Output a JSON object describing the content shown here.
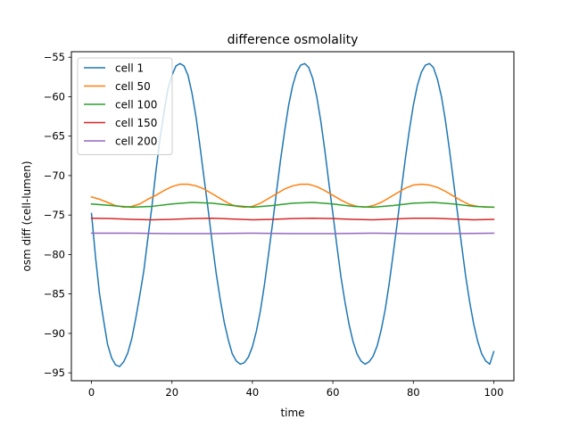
{
  "chart_data": {
    "type": "line",
    "title": "difference osmolality",
    "xlabel": "time",
    "ylabel": "osm diff (cell-lumen)",
    "xlim": [
      -5,
      105
    ],
    "ylim": [
      -96.0,
      -54.3
    ],
    "xticks": [
      0,
      20,
      40,
      60,
      80,
      100
    ],
    "yticks": [
      -55,
      -60,
      -65,
      -70,
      -75,
      -80,
      -85,
      -90,
      -95
    ],
    "ytick_labels": [
      "−55",
      "−60",
      "−65",
      "−70",
      "−75",
      "−80",
      "−85",
      "−90",
      "−95"
    ],
    "grid": false,
    "legend_position": "top-left",
    "series": [
      {
        "name": "cell 1",
        "color": "#1f77b4",
        "x": [
          0,
          1,
          2,
          3,
          4,
          5,
          6,
          7,
          8,
          9,
          10,
          11,
          12,
          13,
          14,
          15,
          16,
          17,
          18,
          19,
          20,
          21,
          22,
          23,
          24,
          25,
          26,
          27,
          28,
          29,
          30,
          31,
          32,
          33,
          34,
          35,
          36,
          37,
          38,
          39,
          40,
          41,
          42,
          43,
          44,
          45,
          46,
          47,
          48,
          49,
          50,
          51,
          52,
          53,
          54,
          55,
          56,
          57,
          58,
          59,
          60,
          61,
          62,
          63,
          64,
          65,
          66,
          67,
          68,
          69,
          70,
          71,
          72,
          73,
          74,
          75,
          76,
          77,
          78,
          79,
          80,
          81,
          82,
          83,
          84,
          85,
          86,
          87,
          88,
          89,
          90,
          91,
          92,
          93,
          94,
          95,
          96,
          97,
          98,
          99,
          100
        ],
        "y": [
          -74.8,
          -80.3,
          -85.0,
          -88.3,
          -91.4,
          -93.1,
          -94.0,
          -94.2,
          -93.6,
          -92.5,
          -90.7,
          -88.1,
          -85.2,
          -82.1,
          -78.0,
          -74.0,
          -69.5,
          -65.4,
          -62.1,
          -59.0,
          -57.3,
          -56.1,
          -55.8,
          -56.1,
          -57.3,
          -59.6,
          -62.6,
          -66.4,
          -70.4,
          -74.3,
          -78.5,
          -82.4,
          -85.7,
          -88.6,
          -90.8,
          -92.6,
          -93.5,
          -93.9,
          -93.7,
          -93.0,
          -91.7,
          -89.7,
          -87.1,
          -83.8,
          -80.0,
          -76.1,
          -72.0,
          -68.0,
          -64.4,
          -61.1,
          -58.6,
          -56.9,
          -56.0,
          -55.8,
          -56.3,
          -57.7,
          -60.0,
          -63.1,
          -66.8,
          -70.9,
          -74.8,
          -78.9,
          -82.8,
          -86.0,
          -88.8,
          -91.0,
          -92.6,
          -93.5,
          -93.9,
          -93.6,
          -92.9,
          -91.6,
          -89.6,
          -87.0,
          -83.7,
          -79.9,
          -76.0,
          -71.9,
          -67.9,
          -64.3,
          -61.1,
          -58.6,
          -56.9,
          -56.0,
          -55.8,
          -56.3,
          -57.8,
          -60.0,
          -63.1,
          -66.8,
          -70.8,
          -74.8,
          -78.8,
          -82.7,
          -86.0,
          -88.8,
          -91.0,
          -92.6,
          -93.5,
          -93.9,
          -92.3
        ]
      },
      {
        "name": "cell 50",
        "color": "#ff7f0e",
        "x": [
          0,
          2,
          4,
          6,
          8,
          10,
          12,
          14,
          16,
          18,
          20,
          22,
          24,
          26,
          28,
          30,
          32,
          34,
          36,
          38,
          40,
          42,
          44,
          46,
          48,
          50,
          52,
          54,
          56,
          58,
          60,
          62,
          64,
          66,
          68,
          70,
          72,
          74,
          76,
          78,
          80,
          82,
          84,
          86,
          88,
          90,
          92,
          94,
          96,
          98,
          100
        ],
        "y": [
          -72.7,
          -73.0,
          -73.4,
          -73.8,
          -74.0,
          -73.9,
          -73.6,
          -73.0,
          -72.5,
          -71.9,
          -71.4,
          -71.1,
          -71.1,
          -71.3,
          -71.7,
          -72.3,
          -72.9,
          -73.5,
          -73.9,
          -74.0,
          -73.9,
          -73.5,
          -72.9,
          -72.3,
          -71.7,
          -71.3,
          -71.1,
          -71.1,
          -71.4,
          -71.9,
          -72.5,
          -73.1,
          -73.6,
          -73.9,
          -74.0,
          -73.8,
          -73.4,
          -72.8,
          -72.2,
          -71.6,
          -71.2,
          -71.1,
          -71.2,
          -71.5,
          -72.0,
          -72.6,
          -73.2,
          -73.7,
          -73.9,
          -74.0,
          -74.0
        ]
      },
      {
        "name": "cell 100",
        "color": "#2ca02c",
        "x": [
          0,
          5,
          10,
          15,
          20,
          25,
          30,
          35,
          40,
          45,
          50,
          55,
          60,
          65,
          70,
          75,
          80,
          85,
          90,
          95,
          100
        ],
        "y": [
          -73.6,
          -73.8,
          -74.0,
          -73.9,
          -73.6,
          -73.4,
          -73.5,
          -73.8,
          -74.0,
          -73.8,
          -73.5,
          -73.4,
          -73.6,
          -73.9,
          -74.0,
          -73.8,
          -73.5,
          -73.4,
          -73.6,
          -73.9,
          -74.0
        ]
      },
      {
        "name": "cell 150",
        "color": "#d62728",
        "x": [
          0,
          5,
          10,
          15,
          20,
          25,
          30,
          35,
          40,
          45,
          50,
          55,
          60,
          65,
          70,
          75,
          80,
          85,
          90,
          95,
          100
        ],
        "y": [
          -75.4,
          -75.45,
          -75.55,
          -75.6,
          -75.55,
          -75.45,
          -75.4,
          -75.5,
          -75.6,
          -75.55,
          -75.45,
          -75.4,
          -75.45,
          -75.55,
          -75.6,
          -75.5,
          -75.4,
          -75.4,
          -75.5,
          -75.6,
          -75.55
        ]
      },
      {
        "name": "cell 200",
        "color": "#9467bd",
        "x": [
          0,
          10,
          20,
          30,
          40,
          50,
          60,
          70,
          80,
          90,
          100
        ],
        "y": [
          -77.3,
          -77.3,
          -77.35,
          -77.35,
          -77.3,
          -77.35,
          -77.35,
          -77.3,
          -77.35,
          -77.35,
          -77.3
        ]
      }
    ]
  }
}
